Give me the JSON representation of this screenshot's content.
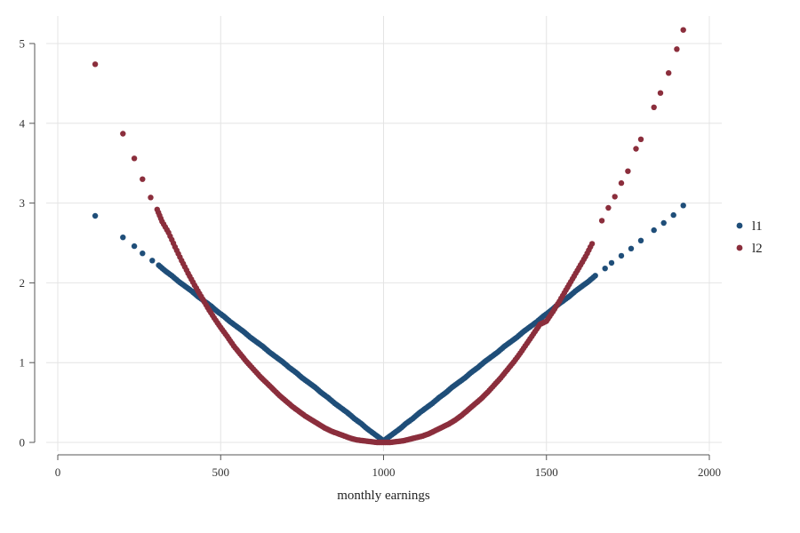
{
  "chart_data": {
    "type": "scatter",
    "title": "",
    "xlabel": "monthly earnings",
    "ylabel": "",
    "xlim": [
      0,
      2000
    ],
    "ylim": [
      0,
      5.2
    ],
    "x_ticks": [
      0,
      500,
      1000,
      1500,
      2000
    ],
    "y_ticks": [
      0,
      1,
      2,
      3,
      4,
      5
    ],
    "x_tick_labels": [
      "0",
      "500",
      "1000",
      "1500",
      "2000"
    ],
    "y_tick_labels": [
      "0",
      "1",
      "2",
      "3",
      "4",
      "5"
    ],
    "grid": true,
    "legend_position": "right",
    "series": [
      {
        "name": "l1",
        "color": "#1f4e79",
        "points": [
          [
            115,
            2.84
          ],
          [
            200,
            2.57
          ],
          [
            235,
            2.46
          ],
          [
            260,
            2.37
          ],
          [
            290,
            2.28
          ],
          [
            310,
            2.22
          ],
          [
            330,
            2.15
          ],
          [
            350,
            2.09
          ],
          [
            370,
            2.02
          ],
          [
            390,
            1.96
          ],
          [
            410,
            1.9
          ],
          [
            430,
            1.83
          ],
          [
            450,
            1.77
          ],
          [
            470,
            1.71
          ],
          [
            490,
            1.64
          ],
          [
            510,
            1.58
          ],
          [
            530,
            1.51
          ],
          [
            550,
            1.45
          ],
          [
            570,
            1.39
          ],
          [
            590,
            1.32
          ],
          [
            610,
            1.26
          ],
          [
            630,
            1.2
          ],
          [
            650,
            1.13
          ],
          [
            670,
            1.07
          ],
          [
            690,
            1.01
          ],
          [
            710,
            0.94
          ],
          [
            730,
            0.88
          ],
          [
            750,
            0.81
          ],
          [
            770,
            0.75
          ],
          [
            790,
            0.69
          ],
          [
            810,
            0.62
          ],
          [
            830,
            0.56
          ],
          [
            850,
            0.49
          ],
          [
            870,
            0.43
          ],
          [
            890,
            0.37
          ],
          [
            910,
            0.3
          ],
          [
            930,
            0.24
          ],
          [
            950,
            0.17
          ],
          [
            970,
            0.11
          ],
          [
            990,
            0.05
          ],
          [
            1000,
            0.01
          ],
          [
            1010,
            0.05
          ],
          [
            1030,
            0.11
          ],
          [
            1050,
            0.17
          ],
          [
            1070,
            0.24
          ],
          [
            1090,
            0.3
          ],
          [
            1110,
            0.37
          ],
          [
            1130,
            0.43
          ],
          [
            1150,
            0.49
          ],
          [
            1170,
            0.56
          ],
          [
            1190,
            0.62
          ],
          [
            1210,
            0.69
          ],
          [
            1230,
            0.75
          ],
          [
            1250,
            0.81
          ],
          [
            1270,
            0.88
          ],
          [
            1290,
            0.94
          ],
          [
            1310,
            1.01
          ],
          [
            1330,
            1.07
          ],
          [
            1350,
            1.13
          ],
          [
            1370,
            1.2
          ],
          [
            1390,
            1.26
          ],
          [
            1410,
            1.32
          ],
          [
            1430,
            1.39
          ],
          [
            1450,
            1.45
          ],
          [
            1470,
            1.51
          ],
          [
            1490,
            1.58
          ],
          [
            1510,
            1.64
          ],
          [
            1530,
            1.71
          ],
          [
            1550,
            1.77
          ],
          [
            1570,
            1.83
          ],
          [
            1590,
            1.9
          ],
          [
            1610,
            1.96
          ],
          [
            1630,
            2.02
          ],
          [
            1650,
            2.09
          ],
          [
            1680,
            2.18
          ],
          [
            1700,
            2.25
          ],
          [
            1730,
            2.34
          ],
          [
            1760,
            2.43
          ],
          [
            1790,
            2.53
          ],
          [
            1830,
            2.66
          ],
          [
            1860,
            2.75
          ],
          [
            1890,
            2.85
          ],
          [
            1920,
            2.97
          ]
        ]
      },
      {
        "name": "l2",
        "color": "#8b2e3c",
        "points": [
          [
            115,
            4.74
          ],
          [
            200,
            3.87
          ],
          [
            235,
            3.56
          ],
          [
            260,
            3.3
          ],
          [
            285,
            3.07
          ],
          [
            305,
            2.92
          ],
          [
            320,
            2.77
          ],
          [
            340,
            2.63
          ],
          [
            360,
            2.45
          ],
          [
            380,
            2.28
          ],
          [
            400,
            2.12
          ],
          [
            420,
            1.97
          ],
          [
            440,
            1.83
          ],
          [
            460,
            1.69
          ],
          [
            480,
            1.56
          ],
          [
            500,
            1.44
          ],
          [
            520,
            1.33
          ],
          [
            540,
            1.21
          ],
          [
            560,
            1.11
          ],
          [
            580,
            1.01
          ],
          [
            600,
            0.92
          ],
          [
            620,
            0.83
          ],
          [
            640,
            0.75
          ],
          [
            660,
            0.67
          ],
          [
            680,
            0.59
          ],
          [
            700,
            0.52
          ],
          [
            720,
            0.45
          ],
          [
            740,
            0.39
          ],
          [
            760,
            0.33
          ],
          [
            780,
            0.28
          ],
          [
            800,
            0.23
          ],
          [
            820,
            0.18
          ],
          [
            840,
            0.14
          ],
          [
            860,
            0.11
          ],
          [
            880,
            0.08
          ],
          [
            900,
            0.05
          ],
          [
            920,
            0.03
          ],
          [
            940,
            0.02
          ],
          [
            960,
            0.01
          ],
          [
            980,
            0.0
          ],
          [
            1000,
            0.0
          ],
          [
            1020,
            0.0
          ],
          [
            1040,
            0.01
          ],
          [
            1060,
            0.02
          ],
          [
            1080,
            0.04
          ],
          [
            1100,
            0.06
          ],
          [
            1120,
            0.08
          ],
          [
            1140,
            0.11
          ],
          [
            1160,
            0.15
          ],
          [
            1180,
            0.19
          ],
          [
            1200,
            0.23
          ],
          [
            1220,
            0.28
          ],
          [
            1240,
            0.34
          ],
          [
            1260,
            0.41
          ],
          [
            1280,
            0.48
          ],
          [
            1300,
            0.55
          ],
          [
            1320,
            0.63
          ],
          [
            1340,
            0.72
          ],
          [
            1360,
            0.81
          ],
          [
            1380,
            0.91
          ],
          [
            1400,
            1.01
          ],
          [
            1420,
            1.12
          ],
          [
            1440,
            1.24
          ],
          [
            1460,
            1.36
          ],
          [
            1480,
            1.48
          ],
          [
            1500,
            1.52
          ],
          [
            1520,
            1.64
          ],
          [
            1540,
            1.77
          ],
          [
            1560,
            1.91
          ],
          [
            1580,
            2.05
          ],
          [
            1600,
            2.19
          ],
          [
            1620,
            2.33
          ],
          [
            1640,
            2.49
          ],
          [
            1670,
            2.78
          ],
          [
            1690,
            2.94
          ],
          [
            1710,
            3.08
          ],
          [
            1730,
            3.25
          ],
          [
            1750,
            3.4
          ],
          [
            1775,
            3.68
          ],
          [
            1790,
            3.8
          ],
          [
            1830,
            4.2
          ],
          [
            1850,
            4.38
          ],
          [
            1875,
            4.63
          ],
          [
            1900,
            4.93
          ],
          [
            1920,
            5.17
          ]
        ]
      }
    ]
  }
}
